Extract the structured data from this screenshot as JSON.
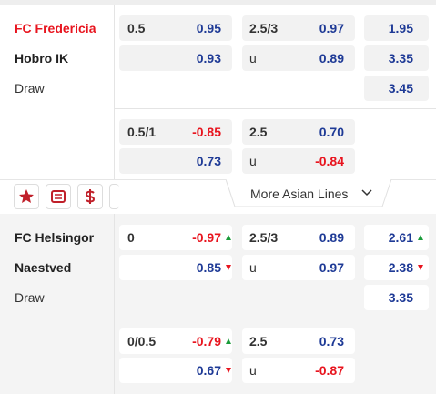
{
  "matches": [
    {
      "home": "FC Fredericia",
      "home_color": "#e8141e",
      "away": "Hobro IK",
      "draw": "Draw",
      "background": "#ffffff",
      "cell_color": "#f2f2f2",
      "x12": [
        "1.95",
        "3.35",
        "3.45"
      ],
      "x12_trends": [
        null,
        null,
        null
      ],
      "lines": [
        {
          "hdp": "0.5",
          "hdp_home": "0.95",
          "hdp_home_trend": null,
          "hdp_away": "0.93",
          "hdp_away_trend": null,
          "ou": "2.5/3",
          "over": "0.97",
          "under_label": "u",
          "under": "0.89"
        },
        {
          "hdp": "0.5/1",
          "hdp_home": "-0.85",
          "hdp_home_trend": null,
          "hdp_away": "0.73",
          "hdp_away_trend": null,
          "ou": "2.5",
          "over": "0.70",
          "under_label": "u",
          "under": "-0.84"
        }
      ]
    },
    {
      "home": "FC Helsingor",
      "home_color": "#222222",
      "away": "Naestved",
      "draw": "Draw",
      "background": "#f4f4f4",
      "cell_color": "#ffffff",
      "x12": [
        "2.61",
        "2.38",
        "3.35"
      ],
      "x12_trends": [
        "up",
        "down",
        null
      ],
      "lines": [
        {
          "hdp": "0",
          "hdp_home": "-0.97",
          "hdp_home_trend": "up",
          "hdp_away": "0.85",
          "hdp_away_trend": "down",
          "ou": "2.5/3",
          "over": "0.89",
          "under_label": "u",
          "under": "0.97"
        },
        {
          "hdp": "0/0.5",
          "hdp_home": "-0.79",
          "hdp_home_trend": "up",
          "hdp_away": "0.67",
          "hdp_away_trend": "down",
          "ou": "2.5",
          "over": "0.73",
          "under_label": "u",
          "under": "-0.87"
        }
      ]
    }
  ],
  "more_lines": "More Asian Lines"
}
